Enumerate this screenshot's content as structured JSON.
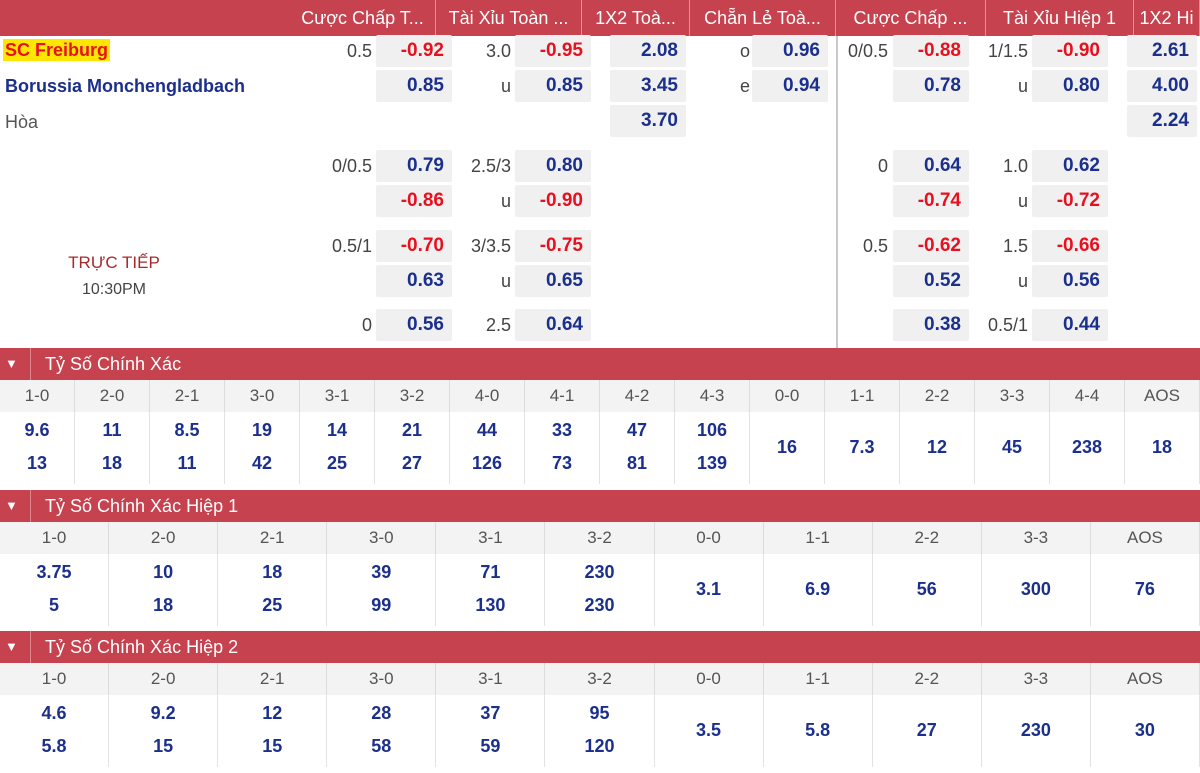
{
  "header": {
    "columns": [
      "Cược Chấp T...",
      "Tài Xỉu Toàn ...",
      "1X2 Toà...",
      "Chẵn Lẻ Toà...",
      "Cược Chấp ...",
      "Tài Xỉu Hiệp 1",
      "1X2 Hi"
    ]
  },
  "teams": {
    "home": "SC Freiburg",
    "away": "Borussia Monchengladbach",
    "draw": "Hòa"
  },
  "live": {
    "status": "TRỰC TIẾP",
    "time": "10:30PM"
  },
  "odds_rows": [
    {
      "ft_hdp": "0.5",
      "ft_hdp_odds": "-0.92",
      "ft_ou": "3.0",
      "ft_ou_odds": "-0.95",
      "ft_1x2": "2.08",
      "oe_label": "o",
      "oe_odds": "0.96",
      "h1_hdp": "0/0.5",
      "h1_hdp_odds": "-0.88",
      "h1_ou": "1/1.5",
      "h1_ou_odds": "-0.90",
      "h1_1x2": "2.61"
    },
    {
      "ft_hdp": "",
      "ft_hdp_odds": "0.85",
      "ft_ou": "u",
      "ft_ou_odds": "0.85",
      "ft_1x2": "3.45",
      "oe_label": "e",
      "oe_odds": "0.94",
      "h1_hdp": "",
      "h1_hdp_odds": "0.78",
      "h1_ou": "u",
      "h1_ou_odds": "0.80",
      "h1_1x2": "4.00"
    },
    {
      "ft_1x2": "3.70",
      "h1_1x2": "2.24"
    },
    {
      "ft_hdp": "0/0.5",
      "ft_hdp_odds": "0.79",
      "ft_ou": "2.5/3",
      "ft_ou_odds": "0.80",
      "h1_hdp": "0",
      "h1_hdp_odds": "0.64",
      "h1_ou": "1.0",
      "h1_ou_odds": "0.62"
    },
    {
      "ft_hdp": "",
      "ft_hdp_odds": "-0.86",
      "ft_ou": "u",
      "ft_ou_odds": "-0.90",
      "h1_hdp": "",
      "h1_hdp_odds": "-0.74",
      "h1_ou": "u",
      "h1_ou_odds": "-0.72"
    },
    {
      "ft_hdp": "0.5/1",
      "ft_hdp_odds": "-0.70",
      "ft_ou": "3/3.5",
      "ft_ou_odds": "-0.75",
      "h1_hdp": "0.5",
      "h1_hdp_odds": "-0.62",
      "h1_ou": "1.5",
      "h1_ou_odds": "-0.66"
    },
    {
      "ft_hdp": "",
      "ft_hdp_odds": "0.63",
      "ft_ou": "u",
      "ft_ou_odds": "0.65",
      "h1_hdp": "",
      "h1_hdp_odds": "0.52",
      "h1_ou": "u",
      "h1_ou_odds": "0.56"
    },
    {
      "ft_hdp": "0",
      "ft_hdp_odds": "0.56",
      "ft_ou": "2.5",
      "ft_ou_odds": "0.64",
      "h1_hdp": "",
      "h1_hdp_odds": "0.38",
      "h1_ou": "0.5/1",
      "h1_ou_odds": "0.44"
    }
  ],
  "sections": [
    {
      "title": "Tỷ Số Chính Xác",
      "headers": [
        "1-0",
        "2-0",
        "2-1",
        "3-0",
        "3-1",
        "3-2",
        "4-0",
        "4-1",
        "4-2",
        "4-3",
        "0-0",
        "1-1",
        "2-2",
        "3-3",
        "4-4",
        "AOS"
      ],
      "values": [
        [
          "9.6",
          "13"
        ],
        [
          "11",
          "18"
        ],
        [
          "8.5",
          "11"
        ],
        [
          "19",
          "42"
        ],
        [
          "14",
          "25"
        ],
        [
          "21",
          "27"
        ],
        [
          "44",
          "126"
        ],
        [
          "33",
          "73"
        ],
        [
          "47",
          "81"
        ],
        [
          "106",
          "139"
        ],
        [
          "16"
        ],
        [
          "7.3"
        ],
        [
          "12"
        ],
        [
          "45"
        ],
        [
          "238"
        ],
        [
          "18"
        ]
      ]
    },
    {
      "title": "Tỷ Số Chính Xác Hiệp 1",
      "headers": [
        "1-0",
        "2-0",
        "2-1",
        "3-0",
        "3-1",
        "3-2",
        "0-0",
        "1-1",
        "2-2",
        "3-3",
        "AOS"
      ],
      "values": [
        [
          "3.75",
          "5"
        ],
        [
          "10",
          "18"
        ],
        [
          "18",
          "25"
        ],
        [
          "39",
          "99"
        ],
        [
          "71",
          "130"
        ],
        [
          "230",
          "230"
        ],
        [
          "3.1"
        ],
        [
          "6.9"
        ],
        [
          "56"
        ],
        [
          "300"
        ],
        [
          "76"
        ]
      ]
    },
    {
      "title": "Tỷ Số Chính Xác Hiệp 2",
      "headers": [
        "1-0",
        "2-0",
        "2-1",
        "3-0",
        "3-1",
        "3-2",
        "0-0",
        "1-1",
        "2-2",
        "3-3",
        "AOS"
      ],
      "values": [
        [
          "4.6",
          "5.8"
        ],
        [
          "9.2",
          "15"
        ],
        [
          "12",
          "15"
        ],
        [
          "28",
          "58"
        ],
        [
          "37",
          "59"
        ],
        [
          "95",
          "120"
        ],
        [
          "3.5"
        ],
        [
          "5.8"
        ],
        [
          "27"
        ],
        [
          "230"
        ],
        [
          "30"
        ]
      ]
    }
  ],
  "colors": {
    "accent": "#c6424e",
    "positive": "#1b2f8c",
    "negative": "#e8101e",
    "home_highlight": "#ffe600",
    "live_text": "#a52a2a"
  },
  "icons": {
    "section_toggle": "chevron-down-icon"
  }
}
